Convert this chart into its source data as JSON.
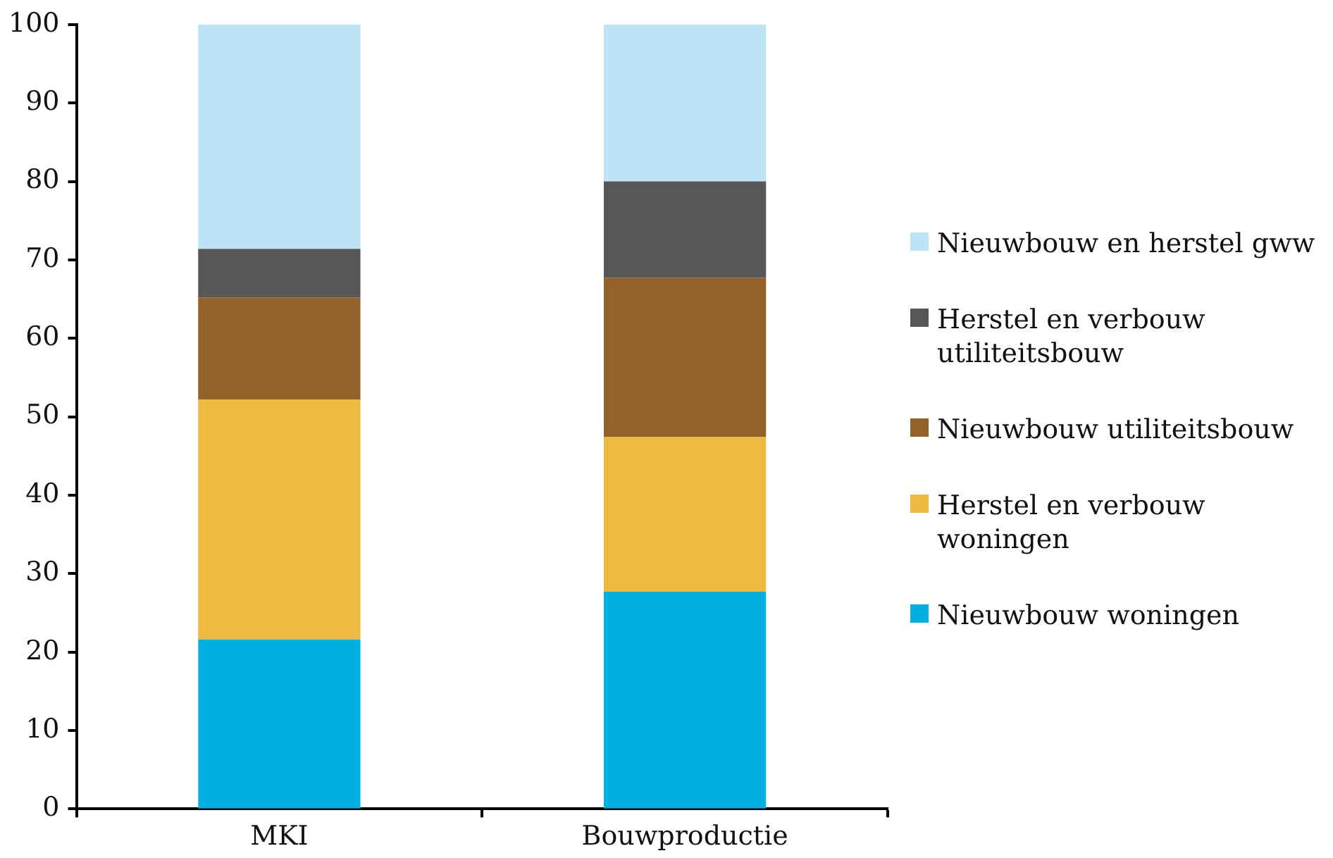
{
  "chart_data": {
    "type": "bar",
    "stacked": true,
    "categories": [
      "MKI",
      "Bouwproductie"
    ],
    "series": [
      {
        "name": "Nieuwbouw woningen",
        "color": "#00b0e3",
        "values": [
          21.6,
          27.7
        ]
      },
      {
        "name": "Herstel en verbouw woningen",
        "color": "#eeba41",
        "values": [
          30.6,
          19.7
        ]
      },
      {
        "name": "Nieuwbouw utiliteitsbouw",
        "color": "#93622a",
        "values": [
          13.0,
          20.3
        ]
      },
      {
        "name": "Herstel en verbouw utiliteitsbouw",
        "color": "#575757",
        "values": [
          6.2,
          12.3
        ]
      },
      {
        "name": "Nieuwbouw en herstel gww",
        "color": "#bde4f5",
        "values": [
          28.6,
          20.0
        ]
      }
    ],
    "ylim": [
      0,
      100
    ],
    "yticks": [
      0,
      10,
      20,
      30,
      40,
      50,
      60,
      70,
      80,
      90,
      100
    ],
    "grid": false,
    "legend": "right"
  }
}
